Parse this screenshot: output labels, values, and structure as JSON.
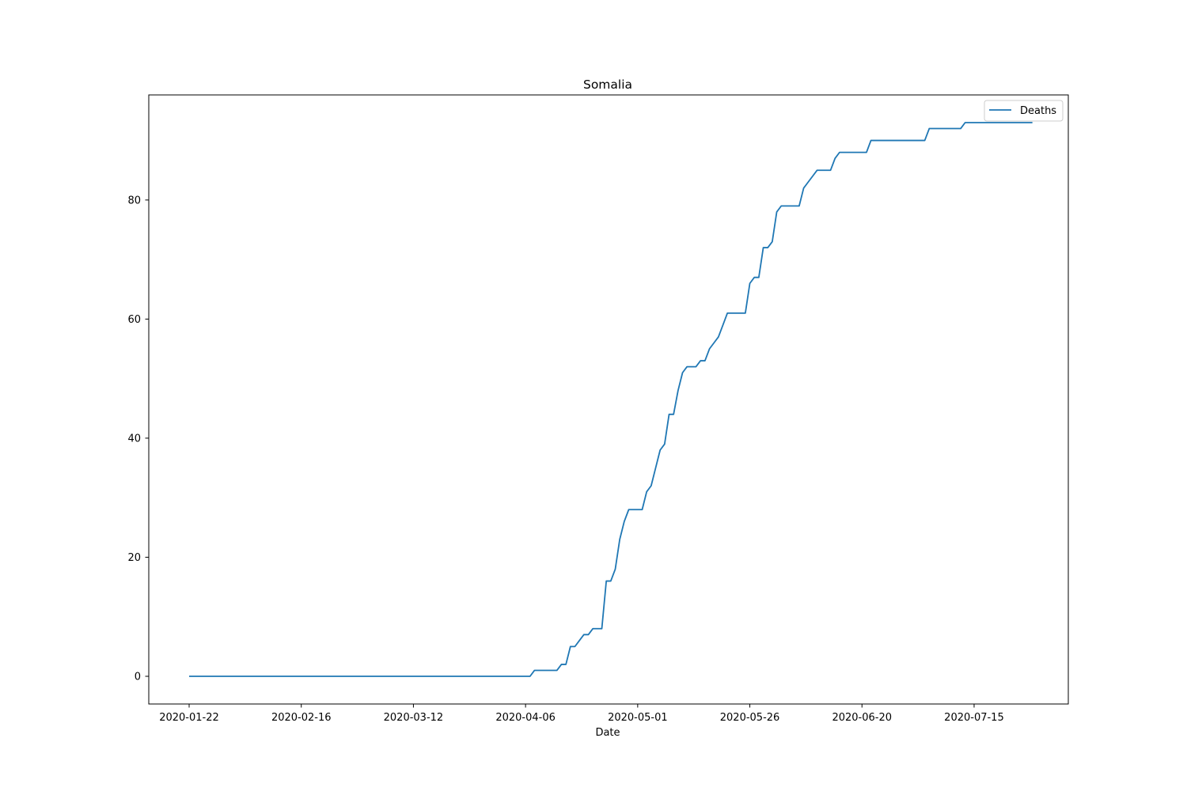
{
  "chart_data": {
    "type": "line",
    "title": "Somalia",
    "xlabel": "Date",
    "ylabel": "",
    "x_start": "2020-01-22",
    "x_end": "2020-07-27",
    "xlim": [
      "2020-01-13",
      "2020-08-05"
    ],
    "ylim": [
      -4.65,
      97.65
    ],
    "x_ticks": [
      "2020-01-22",
      "2020-02-16",
      "2020-03-12",
      "2020-04-06",
      "2020-05-01",
      "2020-05-26",
      "2020-06-20",
      "2020-07-15"
    ],
    "y_ticks": [
      0,
      20,
      40,
      60,
      80
    ],
    "grid": false,
    "legend": "top-right",
    "color": "#1f77b4",
    "series": [
      {
        "name": "Deaths",
        "values": [
          0,
          0,
          0,
          0,
          0,
          0,
          0,
          0,
          0,
          0,
          0,
          0,
          0,
          0,
          0,
          0,
          0,
          0,
          0,
          0,
          0,
          0,
          0,
          0,
          0,
          0,
          0,
          0,
          0,
          0,
          0,
          0,
          0,
          0,
          0,
          0,
          0,
          0,
          0,
          0,
          0,
          0,
          0,
          0,
          0,
          0,
          0,
          0,
          0,
          0,
          0,
          0,
          0,
          0,
          0,
          0,
          0,
          0,
          0,
          0,
          0,
          0,
          0,
          0,
          0,
          0,
          0,
          0,
          0,
          0,
          0,
          0,
          0,
          0,
          0,
          0,
          0,
          1,
          1,
          1,
          1,
          1,
          1,
          2,
          2,
          5,
          5,
          6,
          7,
          7,
          8,
          8,
          8,
          16,
          16,
          18,
          23,
          26,
          28,
          28,
          28,
          28,
          31,
          32,
          35,
          38,
          39,
          44,
          44,
          48,
          51,
          52,
          52,
          52,
          53,
          53,
          55,
          56,
          57,
          59,
          61,
          61,
          61,
          61,
          61,
          66,
          67,
          67,
          72,
          72,
          73,
          78,
          79,
          79,
          79,
          79,
          79,
          82,
          83,
          84,
          85,
          85,
          85,
          85,
          87,
          88,
          88,
          88,
          88,
          88,
          88,
          88,
          90,
          90,
          90,
          90,
          90,
          90,
          90,
          90,
          90,
          90,
          90,
          90,
          90,
          92,
          92,
          92,
          92,
          92,
          92,
          92,
          92,
          93,
          93,
          93,
          93,
          93,
          93,
          93,
          93,
          93,
          93,
          93,
          93,
          93,
          93,
          93,
          93
        ]
      }
    ]
  }
}
